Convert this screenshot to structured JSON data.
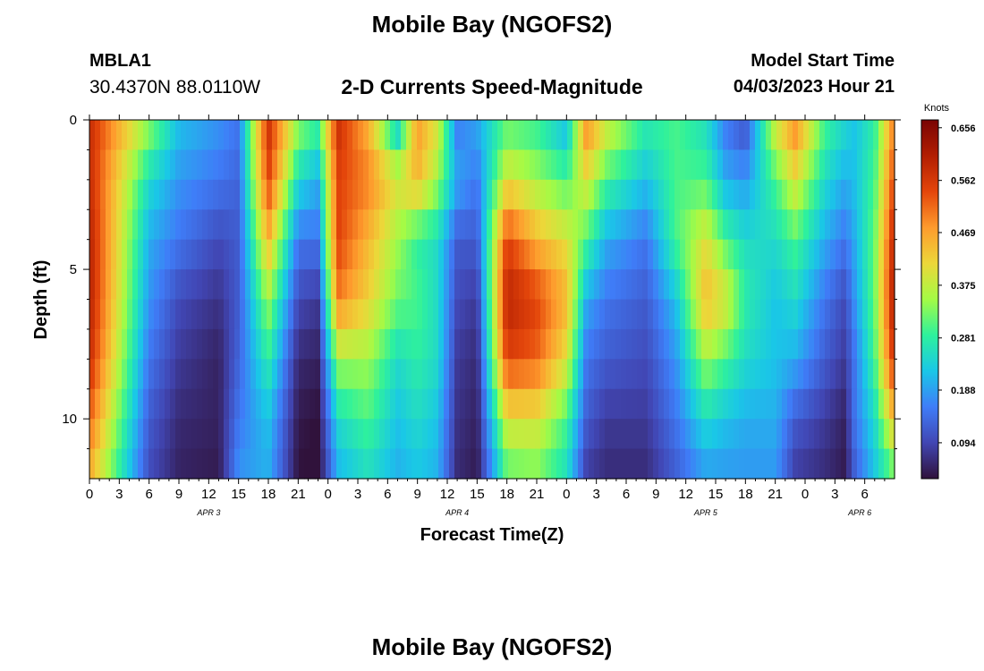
{
  "header": {
    "title": "Mobile Bay (NGOFS2)",
    "station_id": "MBLA1",
    "station_coords": "30.4370N  88.0110W",
    "subtitle": "2-D Currents Speed-Magnitude",
    "model_label": "Model Start Time",
    "model_time": "04/03/2023 Hour 21"
  },
  "footer": {
    "title": "Mobile Bay (NGOFS2)"
  },
  "chart_data": {
    "type": "heatmap",
    "title": "2-D Currents Speed-Magnitude",
    "xlabel": "Forecast Time(Z)",
    "ylabel": "Depth (ft)",
    "colorbar_label": "Knots",
    "colorbar_ticks": [
      "0.094",
      "0.188",
      "0.281",
      "0.375",
      "0.469",
      "0.562",
      "0.656"
    ],
    "colorbar_values": [
      0.094,
      0.188,
      0.281,
      0.375,
      0.469,
      0.562,
      0.656
    ],
    "clim": [
      0.03,
      0.67
    ],
    "xlim": [
      0,
      81
    ],
    "ylim": [
      0,
      12
    ],
    "x_tick_labels": [
      "0",
      "3",
      "6",
      "9",
      "12",
      "15",
      "18",
      "21",
      "0",
      "3",
      "6",
      "9",
      "12",
      "15",
      "18",
      "21",
      "0",
      "3",
      "6",
      "9",
      "12",
      "15",
      "18",
      "21",
      "0",
      "3",
      "6"
    ],
    "date_labels": [
      {
        "text": "APR 3",
        "hour": 12
      },
      {
        "text": "APR 4",
        "hour": 37
      },
      {
        "text": "APR 5",
        "hour": 62
      },
      {
        "text": "APR 6",
        "hour": 77.5
      }
    ],
    "y_tick_labels": [
      {
        "depth": 0,
        "text": "0"
      },
      {
        "depth": 5,
        "text": "5"
      },
      {
        "depth": 10,
        "text": "10"
      }
    ],
    "times_hours": [
      0,
      6,
      9,
      13,
      15,
      18,
      21,
      23,
      25,
      28,
      31,
      33,
      35,
      37,
      39,
      42,
      45,
      48,
      50,
      52,
      56,
      59,
      62,
      64,
      66,
      69,
      71,
      74,
      76,
      77,
      79,
      81
    ],
    "depths_ft": [
      0,
      2,
      4,
      6,
      8,
      10,
      12
    ],
    "speed_knots": [
      [
        0.58,
        0.58,
        0.6,
        0.6,
        0.58,
        0.52,
        0.45
      ],
      [
        0.35,
        0.25,
        0.2,
        0.18,
        0.15,
        0.12,
        0.1
      ],
      [
        0.22,
        0.18,
        0.15,
        0.1,
        0.08,
        0.06,
        0.05
      ],
      [
        0.18,
        0.15,
        0.1,
        0.07,
        0.05,
        0.05,
        0.04
      ],
      [
        0.15,
        0.13,
        0.12,
        0.12,
        0.13,
        0.15,
        0.18
      ],
      [
        0.58,
        0.55,
        0.45,
        0.35,
        0.28,
        0.22,
        0.2
      ],
      [
        0.35,
        0.25,
        0.15,
        0.1,
        0.06,
        0.04,
        0.03
      ],
      [
        0.3,
        0.2,
        0.15,
        0.08,
        0.05,
        0.03,
        0.02
      ],
      [
        0.58,
        0.55,
        0.55,
        0.5,
        0.35,
        0.25,
        0.2
      ],
      [
        0.45,
        0.5,
        0.45,
        0.42,
        0.35,
        0.3,
        0.25
      ],
      [
        0.2,
        0.4,
        0.35,
        0.32,
        0.25,
        0.22,
        0.2
      ],
      [
        0.48,
        0.45,
        0.28,
        0.3,
        0.28,
        0.25,
        0.22
      ],
      [
        0.4,
        0.35,
        0.25,
        0.25,
        0.25,
        0.22,
        0.2
      ],
      [
        0.15,
        0.2,
        0.12,
        0.1,
        0.08,
        0.07,
        0.06
      ],
      [
        0.2,
        0.15,
        0.12,
        0.08,
        0.06,
        0.05,
        0.04
      ],
      [
        0.3,
        0.4,
        0.55,
        0.6,
        0.55,
        0.4,
        0.3
      ],
      [
        0.28,
        0.35,
        0.45,
        0.55,
        0.52,
        0.4,
        0.32
      ],
      [
        0.2,
        0.3,
        0.4,
        0.45,
        0.4,
        0.3,
        0.25
      ],
      [
        0.5,
        0.4,
        0.3,
        0.2,
        0.15,
        0.12,
        0.08
      ],
      [
        0.4,
        0.3,
        0.2,
        0.15,
        0.12,
        0.08,
        0.06
      ],
      [
        0.28,
        0.22,
        0.15,
        0.12,
        0.1,
        0.08,
        0.06
      ],
      [
        0.3,
        0.3,
        0.3,
        0.22,
        0.18,
        0.15,
        0.12
      ],
      [
        0.25,
        0.3,
        0.4,
        0.45,
        0.35,
        0.25,
        0.18
      ],
      [
        0.15,
        0.2,
        0.3,
        0.4,
        0.3,
        0.22,
        0.18
      ],
      [
        0.1,
        0.18,
        0.25,
        0.28,
        0.25,
        0.2,
        0.18
      ],
      [
        0.4,
        0.3,
        0.25,
        0.22,
        0.22,
        0.2,
        0.18
      ],
      [
        0.5,
        0.4,
        0.3,
        0.25,
        0.2,
        0.12,
        0.08
      ],
      [
        0.3,
        0.25,
        0.2,
        0.15,
        0.12,
        0.08,
        0.06
      ],
      [
        0.25,
        0.2,
        0.15,
        0.1,
        0.08,
        0.05,
        0.04
      ],
      [
        0.22,
        0.22,
        0.2,
        0.18,
        0.15,
        0.15,
        0.12
      ],
      [
        0.28,
        0.3,
        0.32,
        0.32,
        0.3,
        0.25,
        0.22
      ],
      [
        0.5,
        0.55,
        0.6,
        0.62,
        0.58,
        0.45,
        0.3
      ]
    ]
  }
}
